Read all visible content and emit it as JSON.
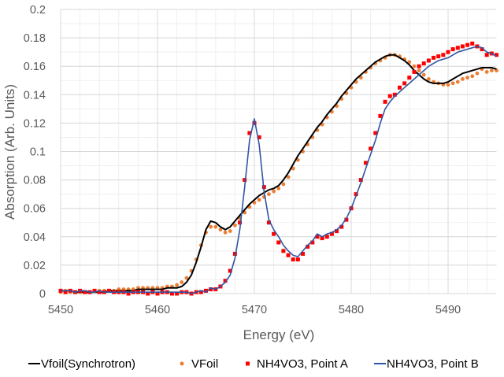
{
  "chart_data": {
    "type": "scatter",
    "xlabel": "Energy (eV)",
    "ylabel": "Absorption (Arb. Units)",
    "xlim": [
      5450,
      5495
    ],
    "ylim": [
      0,
      0.2
    ],
    "x_ticks": [
      "5450",
      "5460",
      "5470",
      "5480",
      "5490"
    ],
    "y_ticks": [
      "0",
      "0.02",
      "0.04",
      "0.06",
      "0.08",
      "0.1",
      "0.12",
      "0.14",
      "0.16",
      "0.18",
      "0.2"
    ],
    "grid": true,
    "legend_position": "bottom",
    "x": [
      5450,
      5450.5,
      5451,
      5451.5,
      5452,
      5452.5,
      5453,
      5453.5,
      5454,
      5454.5,
      5455,
      5455.5,
      5456,
      5456.5,
      5457,
      5457.5,
      5458,
      5458.5,
      5459,
      5459.5,
      5460,
      5460.5,
      5461,
      5461.5,
      5462,
      5462.5,
      5463,
      5463.5,
      5464,
      5464.5,
      5465,
      5465.5,
      5466,
      5466.5,
      5467,
      5467.5,
      5468,
      5468.5,
      5469,
      5469.5,
      5470,
      5470.5,
      5471,
      5471.5,
      5472,
      5472.5,
      5473,
      5473.5,
      5474,
      5474.5,
      5475,
      5475.5,
      5476,
      5476.5,
      5477,
      5477.5,
      5478,
      5478.5,
      5479,
      5479.5,
      5480,
      5480.5,
      5481,
      5481.5,
      5482,
      5482.5,
      5483,
      5483.5,
      5484,
      5484.5,
      5485,
      5485.5,
      5486,
      5486.5,
      5487,
      5487.5,
      5488,
      5488.5,
      5489,
      5489.5,
      5490,
      5490.5,
      5491,
      5491.5,
      5492,
      5492.5,
      5493,
      5493.5,
      5494,
      5494.5,
      5495
    ],
    "series": [
      {
        "name": "Vfoil(Synchrotron)",
        "style": "line",
        "color": "#000000",
        "values": [
          0.002,
          0.002,
          0.002,
          0.001,
          0.001,
          0.001,
          0.001,
          0.001,
          0.001,
          0.001,
          0.002,
          0.002,
          0.002,
          0.002,
          0.002,
          0.002,
          0.003,
          0.003,
          0.003,
          0.003,
          0.003,
          0.003,
          0.004,
          0.004,
          0.004,
          0.005,
          0.008,
          0.013,
          0.022,
          0.033,
          0.045,
          0.051,
          0.05,
          0.047,
          0.045,
          0.047,
          0.051,
          0.055,
          0.059,
          0.063,
          0.066,
          0.069,
          0.071,
          0.073,
          0.074,
          0.076,
          0.08,
          0.085,
          0.091,
          0.097,
          0.102,
          0.107,
          0.112,
          0.117,
          0.121,
          0.126,
          0.13,
          0.134,
          0.139,
          0.143,
          0.147,
          0.151,
          0.154,
          0.157,
          0.16,
          0.163,
          0.165,
          0.167,
          0.168,
          0.168,
          0.166,
          0.164,
          0.161,
          0.157,
          0.154,
          0.151,
          0.149,
          0.148,
          0.148,
          0.148,
          0.149,
          0.151,
          0.153,
          0.155,
          0.156,
          0.157,
          0.158,
          0.159,
          0.159,
          0.159,
          0.158
        ]
      },
      {
        "name": "VFoil",
        "style": "circle-markers",
        "color": "#ED7D31",
        "values": [
          0.001,
          0.002,
          0.001,
          0.001,
          0.001,
          0.001,
          0.001,
          0.002,
          0.002,
          0.002,
          0.002,
          0.002,
          0.003,
          0.003,
          0.003,
          0.003,
          0.004,
          0.004,
          0.004,
          0.004,
          0.004,
          0.004,
          0.005,
          0.005,
          0.006,
          0.008,
          0.011,
          0.016,
          0.024,
          0.034,
          0.043,
          0.047,
          0.047,
          0.045,
          0.043,
          0.044,
          0.048,
          0.053,
          0.057,
          0.061,
          0.064,
          0.066,
          0.068,
          0.07,
          0.072,
          0.074,
          0.077,
          0.082,
          0.088,
          0.094,
          0.1,
          0.105,
          0.11,
          0.115,
          0.119,
          0.124,
          0.128,
          0.132,
          0.137,
          0.141,
          0.145,
          0.149,
          0.152,
          0.156,
          0.159,
          0.162,
          0.164,
          0.166,
          0.168,
          0.168,
          0.167,
          0.165,
          0.163,
          0.16,
          0.157,
          0.154,
          0.151,
          0.149,
          0.148,
          0.147,
          0.147,
          0.148,
          0.149,
          0.151,
          0.152,
          0.153,
          0.155,
          0.158,
          0.156,
          0.157,
          0.157
        ]
      },
      {
        "name": "NH4VO3, Point A",
        "style": "square-markers",
        "color": "#FF0000",
        "values": [
          0.002,
          0.001,
          0.002,
          0.001,
          0.002,
          0.001,
          0.001,
          0.002,
          0.001,
          0.001,
          0.002,
          0.001,
          0.001,
          0.001,
          0.0,
          0.001,
          0.001,
          0.001,
          0.0,
          0.001,
          0.0,
          0.001,
          0.001,
          0.0,
          0.0,
          0.001,
          0.001,
          0.0,
          0.001,
          0.001,
          0.002,
          0.003,
          0.003,
          0.005,
          0.009,
          0.016,
          0.028,
          0.05,
          0.08,
          0.113,
          0.12,
          0.11,
          0.075,
          0.05,
          0.042,
          0.036,
          0.03,
          0.027,
          0.024,
          0.024,
          0.028,
          0.033,
          0.036,
          0.04,
          0.039,
          0.04,
          0.042,
          0.044,
          0.047,
          0.052,
          0.06,
          0.07,
          0.08,
          0.092,
          0.102,
          0.113,
          0.125,
          0.135,
          0.139,
          0.14,
          0.145,
          0.148,
          0.152,
          0.156,
          0.16,
          0.162,
          0.164,
          0.166,
          0.167,
          0.168,
          0.17,
          0.172,
          0.173,
          0.174,
          0.175,
          0.176,
          0.174,
          0.172,
          0.168,
          0.169,
          0.168
        ]
      },
      {
        "name": "NH4VO3, Point B",
        "style": "line",
        "color": "#2F55A4",
        "values": [
          0.002,
          0.002,
          0.002,
          0.001,
          0.002,
          0.002,
          0.001,
          0.001,
          0.002,
          0.001,
          0.001,
          0.001,
          0.001,
          0.001,
          0.001,
          0.001,
          0.001,
          0.001,
          0.001,
          0.001,
          0.001,
          0.001,
          0.001,
          0.001,
          0.001,
          0.001,
          0.001,
          0.0,
          0.001,
          0.002,
          0.001,
          0.004,
          0.003,
          0.005,
          0.008,
          0.013,
          0.025,
          0.045,
          0.075,
          0.108,
          0.123,
          0.105,
          0.072,
          0.052,
          0.045,
          0.04,
          0.034,
          0.03,
          0.027,
          0.026,
          0.03,
          0.034,
          0.037,
          0.042,
          0.04,
          0.042,
          0.043,
          0.045,
          0.048,
          0.053,
          0.06,
          0.069,
          0.078,
          0.088,
          0.098,
          0.108,
          0.12,
          0.13,
          0.135,
          0.139,
          0.142,
          0.145,
          0.148,
          0.151,
          0.154,
          0.157,
          0.16,
          0.162,
          0.164,
          0.165,
          0.166,
          0.168,
          0.17,
          0.171,
          0.172,
          0.173,
          0.174,
          0.173,
          0.17,
          0.169,
          0.167
        ]
      }
    ]
  }
}
